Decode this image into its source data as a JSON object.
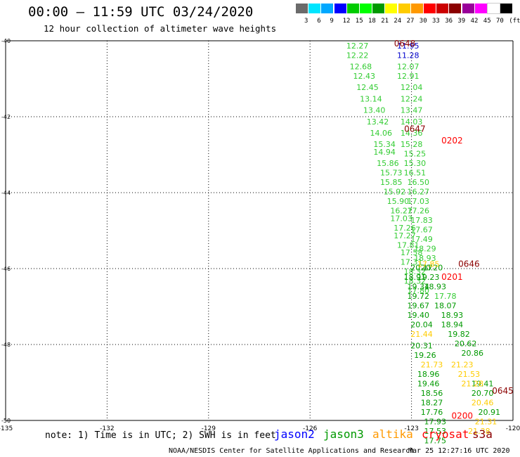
{
  "header": {
    "title": "00:00 – 11:59 UTC 03/24/2020",
    "subtitle": "12 hour collection of altimeter wave heights"
  },
  "color_scale": {
    "unit": "(ft)",
    "colors": [
      "#6b6b6b",
      "#00e5ff",
      "#00a8ff",
      "#0000ff",
      "#00cc00",
      "#00ff00",
      "#009900",
      "#ffff00",
      "#ffcc00",
      "#ff9900",
      "#ff0000",
      "#cc0000",
      "#8b0000",
      "#990099",
      "#ff00ff",
      "#ffffff",
      "#000000"
    ],
    "labels": [
      "3",
      "6",
      "9",
      "12",
      "15",
      "18",
      "21",
      "24",
      "27",
      "30",
      "33",
      "36",
      "39",
      "42",
      "45",
      "70"
    ]
  },
  "footer": {
    "note": "note: 1) Time is in UTC; 2) SWH is in feet",
    "satellites": [
      {
        "name": "jason2",
        "color": "#0000ff"
      },
      {
        "name": "jason3",
        "color": "#009900"
      },
      {
        "name": "altika",
        "color": "#ff9900"
      },
      {
        "name": "cryosat",
        "color": "#ff0000"
      },
      {
        "name": "s3a",
        "color": "#8b0000"
      }
    ],
    "credit": "NOAA/NESDIS Center for Satellite Applications and Research",
    "timestamp": "Mar 25 12:27:16 UTC 2020"
  },
  "chart_data": {
    "type": "scatter",
    "x_range": [
      -135,
      -120
    ],
    "y_range": [
      -50,
      -40
    ],
    "x_ticks": [
      "-135",
      "-132",
      "-129",
      "-126",
      "-123",
      "-120"
    ],
    "y_ticks": [
      "-40",
      "-42",
      "-44",
      "-46",
      "-48",
      "-50"
    ],
    "times": [
      {
        "label": "0648",
        "x": -123.2,
        "y": -40.15,
        "color": "#8b0000"
      },
      {
        "label": "0647",
        "x": -122.9,
        "y": -42.4,
        "color": "#8b0000"
      },
      {
        "label": "0202",
        "x": -121.8,
        "y": -42.7,
        "color": "#ff0000"
      },
      {
        "label": "0646",
        "x": -121.3,
        "y": -45.95,
        "color": "#8b0000"
      },
      {
        "label": "0201",
        "x": -121.8,
        "y": -46.3,
        "color": "#ff0000"
      },
      {
        "label": "0645",
        "x": -120.3,
        "y": -49.3,
        "color": "#8b0000"
      },
      {
        "label": "0200",
        "x": -121.5,
        "y": -49.95,
        "color": "#ff0000"
      }
    ],
    "tracks": [
      {
        "satellite": "jason3",
        "color": "#33cc33",
        "points": [
          {
            "v": "12.27",
            "x": -124.6,
            "y": -40.2
          },
          {
            "v": "12.22",
            "x": -124.6,
            "y": -40.45
          },
          {
            "v": "12.68",
            "x": -124.5,
            "y": -40.75
          },
          {
            "v": "12.43",
            "x": -124.4,
            "y": -41.0
          },
          {
            "v": "12.45",
            "x": -124.3,
            "y": -41.3
          },
          {
            "v": "13.14",
            "x": -124.2,
            "y": -41.6
          },
          {
            "v": "13.40",
            "x": -124.1,
            "y": -41.9
          },
          {
            "v": "13.42",
            "x": -124.0,
            "y": -42.2
          },
          {
            "v": "14.06",
            "x": -123.9,
            "y": -42.5
          },
          {
            "v": "15.34",
            "x": -123.8,
            "y": -42.8
          },
          {
            "v": "14.94",
            "x": -123.8,
            "y": -43.0
          },
          {
            "v": "15.86",
            "x": -123.7,
            "y": -43.3
          },
          {
            "v": "15.73",
            "x": -123.6,
            "y": -43.55
          },
          {
            "v": "15.85",
            "x": -123.6,
            "y": -43.8
          },
          {
            "v": "15.92",
            "x": -123.5,
            "y": -44.05
          },
          {
            "v": "15.90",
            "x": -123.4,
            "y": -44.3
          },
          {
            "v": "16.27",
            "x": -123.3,
            "y": -44.55
          },
          {
            "v": "17.03",
            "x": -123.3,
            "y": -44.75
          },
          {
            "v": "17.26",
            "x": -123.2,
            "y": -45.0
          },
          {
            "v": "17.27",
            "x": -123.2,
            "y": -45.2
          },
          {
            "v": "17.81",
            "x": -123.1,
            "y": -45.45
          },
          {
            "v": "17.58",
            "x": -123.0,
            "y": -45.65
          },
          {
            "v": "17.31",
            "x": -123.0,
            "y": -45.9
          },
          {
            "v": "18.32",
            "x": -122.9,
            "y": -46.15
          },
          {
            "v": "18.32",
            "x": -122.9,
            "y": -46.4
          },
          {
            "v": "17.80",
            "x": -122.8,
            "y": -46.65
          }
        ]
      },
      {
        "satellite": "jason2",
        "color": "#0000cc",
        "points": [
          {
            "v": "11.95",
            "x": -123.1,
            "y": -40.2
          },
          {
            "v": "11.28",
            "x": -123.1,
            "y": -40.45
          }
        ]
      },
      {
        "satellite": "jason3",
        "color": "#33cc33",
        "points": [
          {
            "v": "12.07",
            "x": -123.1,
            "y": -40.75
          },
          {
            "v": "12.91",
            "x": -123.1,
            "y": -41.0
          },
          {
            "v": "12.04",
            "x": -123.0,
            "y": -41.3
          },
          {
            "v": "12.24",
            "x": -123.0,
            "y": -41.6
          },
          {
            "v": "13.47",
            "x": -123.0,
            "y": -41.9
          },
          {
            "v": "14.03",
            "x": -123.0,
            "y": -42.2
          },
          {
            "v": "14.36",
            "x": -123.0,
            "y": -42.5
          },
          {
            "v": "15.28",
            "x": -123.0,
            "y": -42.8
          },
          {
            "v": "15.25",
            "x": -122.9,
            "y": -43.05
          },
          {
            "v": "15.30",
            "x": -122.9,
            "y": -43.3
          },
          {
            "v": "16.51",
            "x": -122.9,
            "y": -43.55
          },
          {
            "v": "16.50",
            "x": -122.8,
            "y": -43.8
          },
          {
            "v": "16.27",
            "x": -122.8,
            "y": -44.05
          },
          {
            "v": "17.03",
            "x": -122.8,
            "y": -44.3
          },
          {
            "v": "17.26",
            "x": -122.8,
            "y": -44.55
          },
          {
            "v": "17.83",
            "x": -122.7,
            "y": -44.8
          },
          {
            "v": "17.67",
            "x": -122.7,
            "y": -45.05
          },
          {
            "v": "17.49",
            "x": -122.7,
            "y": -45.3
          },
          {
            "v": "18.29",
            "x": -122.6,
            "y": -45.55
          },
          {
            "v": "18.93",
            "x": -122.6,
            "y": -45.8
          }
        ]
      },
      {
        "satellite": "jason3",
        "color": "#009900",
        "points": [
          {
            "v": "20.17",
            "x": -122.7,
            "y": -46.05
          },
          {
            "v": "18.91",
            "x": -122.9,
            "y": -46.3
          },
          {
            "v": "19.34",
            "x": -122.8,
            "y": -46.55
          },
          {
            "v": "19.72",
            "x": -122.8,
            "y": -46.8
          },
          {
            "v": "19.67",
            "x": -122.8,
            "y": -47.05
          },
          {
            "v": "19.40",
            "x": -122.8,
            "y": -47.3
          },
          {
            "v": "20.04",
            "x": -122.7,
            "y": -47.55
          },
          {
            "v": "20.31",
            "x": -122.7,
            "y": -48.1
          },
          {
            "v": "19.26",
            "x": -122.6,
            "y": -48.35
          },
          {
            "v": "18.96",
            "x": -122.5,
            "y": -48.85
          },
          {
            "v": "19.46",
            "x": -122.5,
            "y": -49.1
          },
          {
            "v": "18.56",
            "x": -122.4,
            "y": -49.35
          },
          {
            "v": "18.27",
            "x": -122.4,
            "y": -49.6
          },
          {
            "v": "17.76",
            "x": -122.4,
            "y": -49.85
          },
          {
            "v": "17.93",
            "x": -122.3,
            "y": -50.1
          },
          {
            "v": "17.53",
            "x": -122.3,
            "y": -50.35
          },
          {
            "v": "17.75",
            "x": -122.3,
            "y": -50.6
          },
          {
            "v": "20.20",
            "x": -122.4,
            "y": -46.05
          },
          {
            "v": "19.23",
            "x": -122.5,
            "y": -46.3
          },
          {
            "v": "18.93",
            "x": -122.3,
            "y": -46.55
          },
          {
            "v": "18.07",
            "x": -122.0,
            "y": -47.05
          },
          {
            "v": "18.93",
            "x": -121.8,
            "y": -47.3
          },
          {
            "v": "18.94",
            "x": -121.8,
            "y": -47.55
          },
          {
            "v": "19.82",
            "x": -121.6,
            "y": -47.8
          },
          {
            "v": "20.62",
            "x": -121.4,
            "y": -48.05
          },
          {
            "v": "20.86",
            "x": -121.2,
            "y": -48.3
          },
          {
            "v": "19.41",
            "x": -120.9,
            "y": -49.1
          },
          {
            "v": "20.70",
            "x": -120.9,
            "y": -49.35
          },
          {
            "v": "20.91",
            "x": -120.7,
            "y": -49.85
          }
        ]
      },
      {
        "satellite": "jason3",
        "color": "#33cc33",
        "points": [
          {
            "v": "17.78",
            "x": -122.0,
            "y": -46.8
          }
        ]
      },
      {
        "satellite": "altika",
        "color": "#ffcc00",
        "points": [
          {
            "v": "17.85",
            "x": -122.5,
            "y": -45.95
          },
          {
            "v": "21.44",
            "x": -122.7,
            "y": -47.8
          },
          {
            "v": "21.73",
            "x": -122.4,
            "y": -48.6
          },
          {
            "v": "21.23",
            "x": -121.5,
            "y": -48.6
          },
          {
            "v": "21.53",
            "x": -121.3,
            "y": -48.85
          },
          {
            "v": "21.28",
            "x": -121.2,
            "y": -49.1
          },
          {
            "v": "20.46",
            "x": -120.9,
            "y": -49.6
          },
          {
            "v": "21.31",
            "x": -120.8,
            "y": -50.1
          },
          {
            "v": "21.38",
            "x": -121.0,
            "y": -50.35
          }
        ]
      }
    ]
  }
}
